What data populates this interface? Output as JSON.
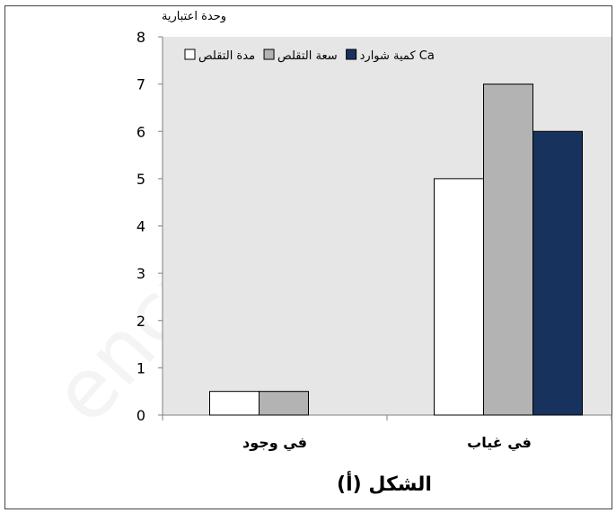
{
  "chart_data": {
    "type": "bar",
    "ylabel": "وحدة اعتبارية",
    "categories": [
      "في وجود",
      "في غياب"
    ],
    "series": [
      {
        "name": "مدة التقلص",
        "values": [
          0.5,
          5
        ],
        "color": "#ffffff"
      },
      {
        "name": "سعة التقلص",
        "values": [
          0.5,
          7
        ],
        "color": "#b3b3b3"
      },
      {
        "name": "كمية شوارد Ca",
        "values": [
          0,
          6
        ],
        "color": "#17325c"
      }
    ],
    "ylim": [
      0,
      8
    ],
    "yticks": [
      0,
      1,
      2,
      3,
      4,
      5,
      6,
      7,
      8
    ],
    "grid": false,
    "legend_position": "top",
    "plot_background": "#e6e6e6"
  },
  "caption": "الشكل (أ)",
  "watermark": "ency-educ"
}
